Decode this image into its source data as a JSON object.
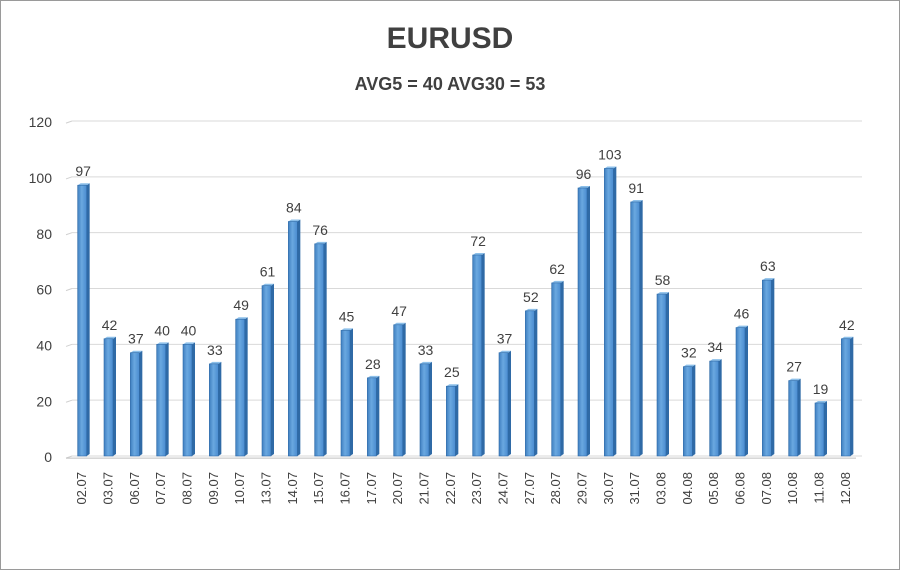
{
  "chart_data": {
    "type": "bar",
    "title": "EURUSD",
    "subtitle": "AVG5 = 40 AVG30 = 53",
    "xlabel": "",
    "ylabel": "",
    "ylim": [
      0,
      120
    ],
    "yticks": [
      0,
      20,
      40,
      60,
      80,
      100,
      120
    ],
    "grid": true,
    "legend": "none",
    "bar_color": "#5b9bd5",
    "categories": [
      "02.07",
      "03.07",
      "06.07",
      "07.07",
      "08.07",
      "09.07",
      "10.07",
      "13.07",
      "14.07",
      "15.07",
      "16.07",
      "17.07",
      "20.07",
      "21.07",
      "22.07",
      "23.07",
      "24.07",
      "27.07",
      "28.07",
      "29.07",
      "30.07",
      "31.07",
      "03.08",
      "04.08",
      "05.08",
      "06.08",
      "07.08",
      "10.08",
      "11.08",
      "12.08"
    ],
    "values": [
      97,
      42,
      37,
      40,
      40,
      33,
      49,
      61,
      84,
      76,
      45,
      28,
      47,
      33,
      25,
      72,
      37,
      52,
      62,
      96,
      103,
      91,
      58,
      32,
      34,
      46,
      63,
      27,
      19,
      42
    ]
  }
}
